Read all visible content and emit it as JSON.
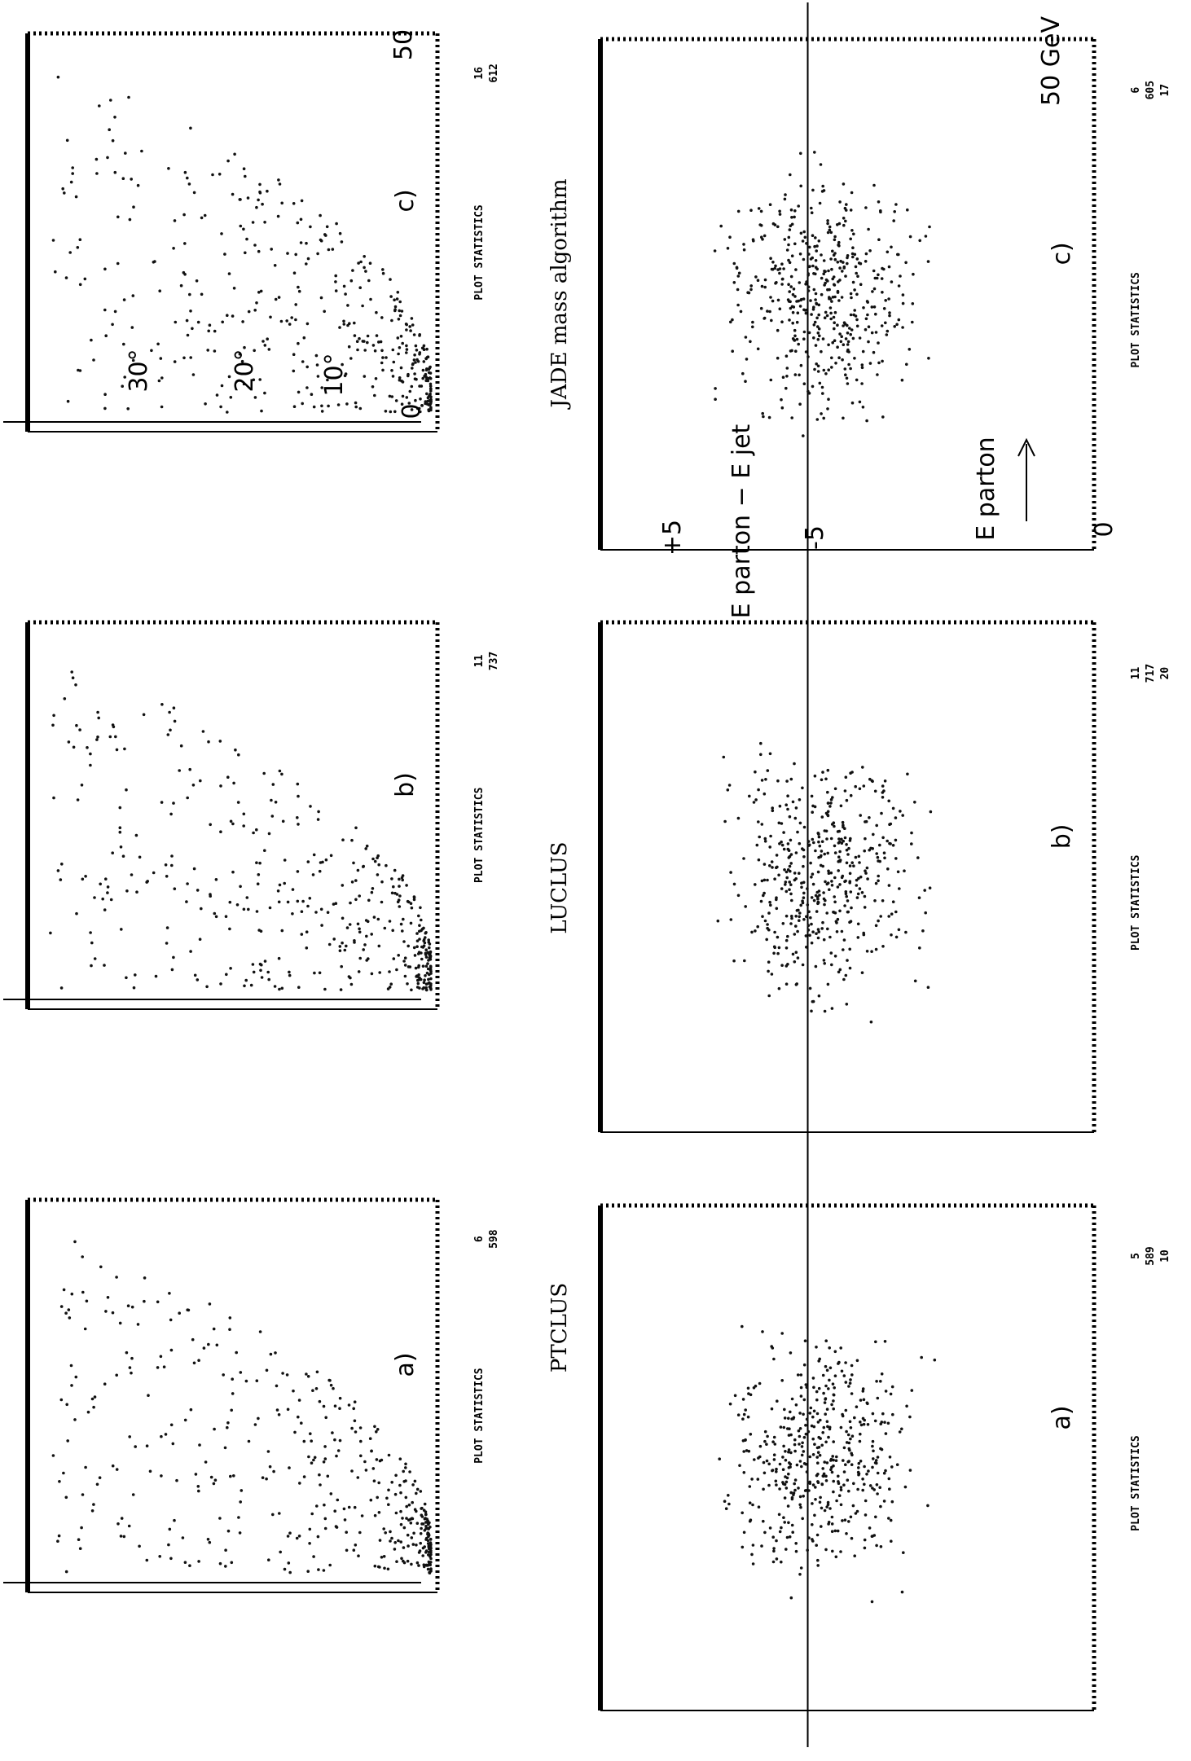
{
  "column_titles": [
    "JADE mass algorithm",
    "LUCLUS",
    "PTCLUS"
  ],
  "panels": [
    {
      "label": "c)",
      "statistics": {
        "heading": "PLOT STATISTICS",
        "values": [
          "16",
          "612"
        ]
      },
      "annotations": [
        "30°",
        "20°",
        "10°",
        "0",
        "50"
      ]
    },
    {
      "label": "b)",
      "statistics": {
        "heading": "PLOT STATISTICS",
        "values": [
          "11",
          "737"
        ]
      }
    },
    {
      "label": "a)",
      "statistics": {
        "heading": "PLOT STATISTICS",
        "values": [
          "6",
          "598"
        ]
      }
    },
    {
      "label": "c)",
      "statistics": {
        "heading": "PLOT STATISTICS",
        "values": [
          "6",
          "605",
          "17"
        ]
      },
      "annotations": [
        "+5",
        "-5",
        "E parton − E jet",
        "E parton",
        "0",
        "50 GeV"
      ]
    },
    {
      "label": "b)",
      "statistics": {
        "heading": "PLOT STATISTICS",
        "values": [
          "11",
          "717",
          "20"
        ]
      }
    },
    {
      "label": "a)",
      "statistics": {
        "heading": "PLOT STATISTICS",
        "values": [
          "5",
          "589",
          "10"
        ]
      }
    }
  ]
}
